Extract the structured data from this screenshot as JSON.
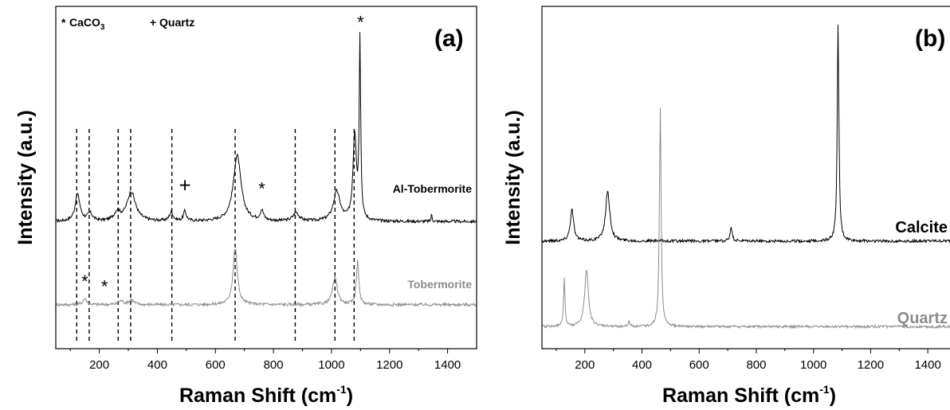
{
  "chart_data": [
    {
      "panel": "(a)",
      "type": "line",
      "xlabel": "Raman Shift (cm",
      "xlabel_sup": "-1",
      "xlabel_close": ")",
      "ylabel": "Intensity (a.u.)",
      "xlim": [
        50,
        1500
      ],
      "xticks": [
        200,
        400,
        600,
        800,
        1000,
        1200,
        1400
      ],
      "legend": {
        "items": [
          {
            "symbol": "*",
            "text": "CaCO",
            "sub": "3"
          },
          {
            "symbol": "+",
            "text": "Quartz"
          }
        ],
        "placement": "top-left"
      },
      "reference_lines": [
        122,
        165,
        265,
        308,
        450,
        668,
        875,
        1012,
        1078
      ],
      "series": [
        {
          "name": "Al-Tobermorite",
          "color": "#000000",
          "baseline": 0.52,
          "noise": 0.006,
          "peaks": [
            {
              "x": 125,
              "h": 0.11,
              "w": 10
            },
            {
              "x": 168,
              "h": 0.03,
              "w": 10
            },
            {
              "x": 262,
              "h": 0.035,
              "w": 12
            },
            {
              "x": 310,
              "h": 0.12,
              "w": 18
            },
            {
              "x": 448,
              "h": 0.035,
              "w": 8
            },
            {
              "x": 495,
              "h": 0.04,
              "w": 6
            },
            {
              "x": 675,
              "h": 0.27,
              "w": 16
            },
            {
              "x": 760,
              "h": 0.04,
              "w": 7
            },
            {
              "x": 878,
              "h": 0.035,
              "w": 12
            },
            {
              "x": 1018,
              "h": 0.12,
              "w": 14
            },
            {
              "x": 1080,
              "h": 0.35,
              "w": 7
            },
            {
              "x": 1098,
              "h": 0.73,
              "w": 3
            },
            {
              "x": 1345,
              "h": 0.03,
              "w": 2
            }
          ]
        },
        {
          "name": "Tobermorite",
          "color": "#8c8c8c",
          "baseline": 0.18,
          "noise": 0.006,
          "peaks": [
            {
              "x": 150,
              "h": 0.025,
              "w": 8
            },
            {
              "x": 275,
              "h": 0.015,
              "w": 10
            },
            {
              "x": 310,
              "h": 0.02,
              "w": 10
            },
            {
              "x": 668,
              "h": 0.23,
              "w": 9
            },
            {
              "x": 1012,
              "h": 0.11,
              "w": 10
            },
            {
              "x": 1090,
              "h": 0.18,
              "w": 5
            }
          ]
        }
      ],
      "annotations": [
        {
          "text": "*",
          "x": 1100,
          "y": 1.31
        },
        {
          "text": "+",
          "x": 495,
          "y": 0.64
        },
        {
          "text": "*",
          "x": 760,
          "y": 0.63
        },
        {
          "text": "*",
          "x": 150,
          "y": 0.25
        },
        {
          "text": "*",
          "x": 218,
          "y": 0.23
        }
      ]
    },
    {
      "panel": "(b)",
      "type": "line",
      "xlabel": "Raman Shift (cm",
      "xlabel_sup": "-1",
      "xlabel_close": ")",
      "ylabel": "Intensity (a.u.)",
      "xlim": [
        50,
        1500
      ],
      "xticks": [
        200,
        400,
        600,
        800,
        1000,
        1200,
        1400
      ],
      "series": [
        {
          "name": "Calcite",
          "color": "#000000",
          "baseline": 0.44,
          "noise": 0.006,
          "peaks": [
            {
              "x": 155,
              "h": 0.13,
              "w": 7
            },
            {
              "x": 280,
              "h": 0.2,
              "w": 9
            },
            {
              "x": 712,
              "h": 0.06,
              "w": 4
            },
            {
              "x": 1086,
              "h": 0.88,
              "w": 3.5
            }
          ]
        },
        {
          "name": "Quartz",
          "color": "#8c8c8c",
          "baseline": 0.09,
          "noise": 0.005,
          "peaks": [
            {
              "x": 128,
              "h": 0.2,
              "w": 3
            },
            {
              "x": 206,
              "h": 0.23,
              "w": 8
            },
            {
              "x": 355,
              "h": 0.02,
              "w": 4
            },
            {
              "x": 464,
              "h": 0.9,
              "w": 3.5
            }
          ]
        }
      ]
    }
  ]
}
